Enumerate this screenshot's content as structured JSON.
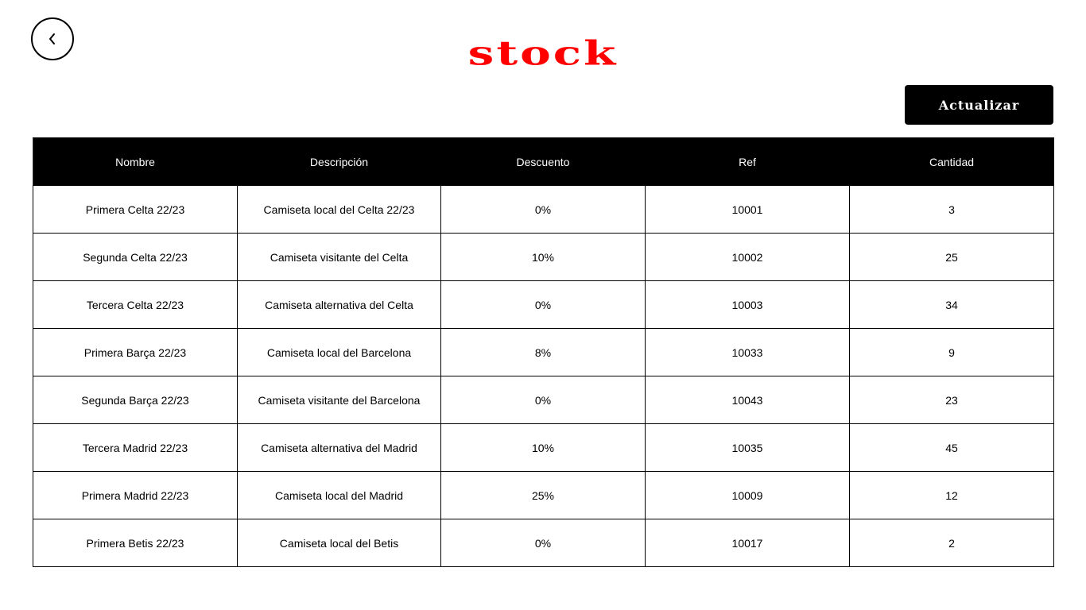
{
  "header": {
    "title": "stock",
    "update_label": "Actualizar"
  },
  "table": {
    "columns": [
      "Nombre",
      "Descripción",
      "Descuento",
      "Ref",
      "Cantidad"
    ],
    "rows": [
      [
        "Primera Celta 22/23",
        "Camiseta local del Celta 22/23",
        "0%",
        "10001",
        "3"
      ],
      [
        "Segunda Celta 22/23",
        "Camiseta visitante del Celta",
        "10%",
        "10002",
        "25"
      ],
      [
        "Tercera Celta 22/23",
        "Camiseta alternativa del Celta",
        "0%",
        "10003",
        "34"
      ],
      [
        "Primera Barça 22/23",
        "Camiseta local del Barcelona",
        "8%",
        "10033",
        "9"
      ],
      [
        "Segunda Barça 22/23",
        "Camiseta visitante del Barcelona",
        "0%",
        "10043",
        "23"
      ],
      [
        "Tercera Madrid 22/23",
        "Camiseta alternativa del Madrid",
        "10%",
        "10035",
        "45"
      ],
      [
        "Primera Madrid 22/23",
        "Camiseta local del Madrid",
        "25%",
        "10009",
        "12"
      ],
      [
        "Primera Betis 22/23",
        "Camiseta local del Betis",
        "0%",
        "10017",
        "2"
      ]
    ]
  },
  "icons": {
    "back": "chevron-left-icon"
  },
  "colors": {
    "title": "#ff0000",
    "header_bg": "#000000",
    "button_bg": "#000000"
  }
}
